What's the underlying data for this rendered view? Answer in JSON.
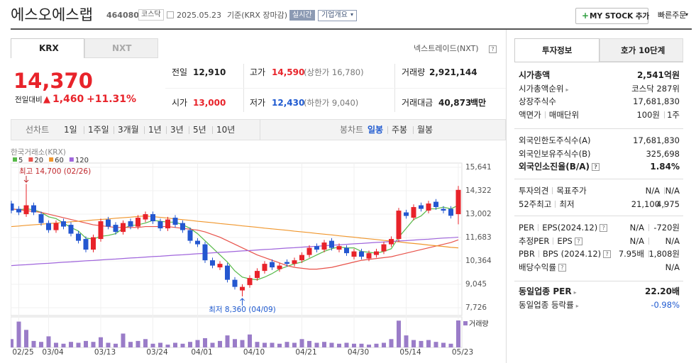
{
  "header": {
    "title": "에스오에스랩",
    "code": "464080",
    "market": "코스닥",
    "date": "2025.05.23",
    "basis": "기준(KRX 장마감)",
    "realtime": "실시간",
    "company_info": "기업개요",
    "mystock": "MY STOCK 추가",
    "quick_order": "빠른주문"
  },
  "market_tabs": [
    "KRX",
    "NXT"
  ],
  "nxt_link": "넥스트레이드(NXT)",
  "price": {
    "current": "14,370",
    "change_label": "전일대비",
    "change": "1,460",
    "change_rate": "+11.31%"
  },
  "summary": {
    "rows": [
      [
        {
          "label": "전일",
          "value": "12,910"
        },
        {
          "label": "고가",
          "value": "14,590",
          "sub": "(상한가 16,780)"
        },
        {
          "label": "거래량",
          "value": "2,921,144"
        }
      ],
      [
        {
          "label": "시가",
          "value": "13,000"
        },
        {
          "label": "저가",
          "value": "12,430",
          "sub": "(하한가 9,040)"
        },
        {
          "label": "거래대금",
          "value": "40,873",
          "unit": "백만"
        }
      ]
    ]
  },
  "toolbar": {
    "left": [
      "선차트",
      "1일",
      "1주일",
      "3개월",
      "1년",
      "3년",
      "5년",
      "10년"
    ],
    "right": [
      "봉차트",
      "일봉",
      "주봉",
      "월봉"
    ]
  },
  "chart_data": {
    "type": "candlestick",
    "source": "한국거래소(KRX)",
    "categories": [
      null,
      "02/25",
      null,
      null,
      null,
      "03/04",
      null,
      null,
      null,
      null,
      null,
      null,
      "03/13",
      null,
      null,
      null,
      null,
      null,
      null,
      "03/24",
      null,
      null,
      null,
      null,
      null,
      "04/01",
      null,
      null,
      null,
      null,
      null,
      null,
      "04/10",
      null,
      null,
      null,
      null,
      null,
      null,
      "04/21",
      null,
      null,
      null,
      null,
      null,
      null,
      "04/30",
      null,
      null,
      null,
      null,
      null,
      null,
      "05/14",
      null,
      null,
      null,
      null,
      null,
      null,
      "05/23"
    ],
    "open": [
      13600,
      13300,
      13000,
      13500,
      13000,
      12500,
      12100,
      12600,
      12400,
      11900,
      11600,
      11000,
      11600,
      12700,
      12400,
      12000,
      12600,
      12300,
      12700,
      13000,
      12600,
      12200,
      12800,
      12500,
      12100,
      11500,
      11300,
      10400,
      10000,
      10100,
      9300,
      8700,
      9000,
      9400,
      9800,
      10300,
      9900,
      10300,
      10200,
      10400,
      10700,
      11200,
      11000,
      11500,
      11000,
      11100,
      10600,
      10900,
      10500,
      10700,
      10900,
      11300,
      11600,
      13100,
      12800,
      13500,
      13200,
      13700,
      13300,
      13300,
      13000
    ],
    "high": [
      13750,
      13450,
      14700,
      13650,
      13150,
      12650,
      12650,
      12750,
      12550,
      12050,
      11750,
      11850,
      12750,
      12850,
      12550,
      12650,
      12750,
      12950,
      13150,
      13150,
      12750,
      12850,
      12950,
      12650,
      12250,
      11650,
      11450,
      10550,
      10350,
      10250,
      9450,
      9050,
      9550,
      9950,
      10350,
      10450,
      10250,
      10450,
      10550,
      10850,
      11250,
      11350,
      11550,
      11650,
      11350,
      11250,
      11050,
      11050,
      10950,
      11050,
      11450,
      11750,
      13350,
      13250,
      13550,
      13650,
      13750,
      13850,
      13450,
      13450,
      14590
    ],
    "low": [
      13050,
      12950,
      12850,
      12950,
      12350,
      11950,
      11950,
      12150,
      11750,
      11350,
      10850,
      10850,
      11450,
      12150,
      11850,
      11850,
      12150,
      12150,
      12550,
      12450,
      12050,
      12050,
      12250,
      11950,
      11350,
      11150,
      10250,
      9950,
      9850,
      9150,
      8750,
      8360,
      8850,
      9250,
      9650,
      9850,
      9750,
      10050,
      10050,
      10250,
      10550,
      10850,
      10850,
      10950,
      10850,
      10650,
      10450,
      10450,
      10350,
      10550,
      10750,
      11150,
      11450,
      12750,
      12650,
      13150,
      13050,
      13250,
      13050,
      12760,
      12430
    ],
    "close": [
      13200,
      13100,
      13500,
      13100,
      12500,
      12100,
      12500,
      12300,
      11900,
      11500,
      11000,
      11700,
      12600,
      12300,
      12000,
      12500,
      12300,
      12800,
      13000,
      12600,
      12200,
      12700,
      12400,
      12100,
      11500,
      11300,
      10400,
      10100,
      10200,
      9300,
      8900,
      8900,
      9400,
      9800,
      10200,
      10000,
      10100,
      10200,
      10400,
      10700,
      11100,
      11000,
      11400,
      11100,
      11200,
      10800,
      10900,
      10600,
      10800,
      10900,
      11300,
      11600,
      13200,
      12900,
      13400,
      13300,
      13600,
      13400,
      13200,
      12910,
      14370
    ],
    "up_color": "#e8232a",
    "down_color": "#2457d0",
    "series": [
      {
        "name": "5",
        "color": "#56b948",
        "values": [
          13300,
          13250,
          13300,
          13250,
          13100,
          12850,
          12750,
          12500,
          12250,
          12050,
          11650,
          11600,
          11750,
          11800,
          11900,
          12200,
          12350,
          12400,
          12500,
          12650,
          12600,
          12550,
          12550,
          12400,
          12200,
          11900,
          11500,
          11100,
          10700,
          10300,
          9800,
          9450,
          9350,
          9300,
          9450,
          9650,
          9900,
          10050,
          10200,
          10300,
          10500,
          10700,
          10900,
          11050,
          11150,
          11100,
          11100,
          10900,
          10850,
          10800,
          10900,
          11050,
          11700,
          12200,
          12700,
          12900,
          13300,
          13300,
          13400,
          13300,
          13500
        ]
      },
      {
        "name": "20",
        "color": "#e8524a",
        "values": [
          13300,
          13250,
          13200,
          13150,
          13100,
          13000,
          12900,
          12800,
          12700,
          12600,
          12500,
          12400,
          12350,
          12300,
          12250,
          12250,
          12250,
          12250,
          12300,
          12300,
          12300,
          12300,
          12250,
          12200,
          12150,
          12100,
          12000,
          11850,
          11700,
          11500,
          11300,
          11100,
          10900,
          10700,
          10550,
          10400,
          10250,
          10100,
          10000,
          9950,
          9900,
          9900,
          9950,
          10000,
          10100,
          10200,
          10300,
          10400,
          10450,
          10500,
          10550,
          10600,
          10700,
          10800,
          10900,
          11000,
          11100,
          11200,
          11300,
          11400,
          11550
        ]
      },
      {
        "name": "60",
        "color": "#f0962c",
        "values": [
          12300,
          12330,
          12370,
          12400,
          12430,
          12470,
          12500,
          12530,
          12570,
          12600,
          12630,
          12670,
          12700,
          12730,
          12770,
          12800,
          12830,
          12870,
          12900,
          12860,
          12820,
          12780,
          12730,
          12690,
          12650,
          12600,
          12560,
          12520,
          12470,
          12430,
          12390,
          12340,
          12300,
          12260,
          12210,
          12170,
          12130,
          12090,
          12040,
          12000,
          11960,
          11910,
          11870,
          11830,
          11780,
          11740,
          11700,
          11650,
          11610,
          11570,
          11520,
          11480,
          11440,
          11390,
          11350,
          11310,
          11260,
          11220,
          11180,
          11130,
          11100
        ]
      },
      {
        "name": "120",
        "color": "#a066dc",
        "values": [
          10100,
          10130,
          10150,
          10180,
          10210,
          10230,
          10260,
          10290,
          10310,
          10340,
          10370,
          10390,
          10420,
          10450,
          10470,
          10500,
          10530,
          10550,
          10580,
          10610,
          10630,
          10660,
          10690,
          10710,
          10740,
          10770,
          10790,
          10820,
          10850,
          10870,
          10900,
          10930,
          10950,
          10980,
          11010,
          11030,
          11060,
          11090,
          11110,
          11140,
          11170,
          11190,
          11220,
          11250,
          11270,
          11300,
          11330,
          11350,
          11380,
          11410,
          11430,
          11460,
          11490,
          11510,
          11540,
          11570,
          11590,
          11620,
          11650,
          11670,
          11700
        ]
      }
    ],
    "volume": {
      "name": "거래량",
      "color": "#9a7cc8",
      "values": [
        900000,
        2800000,
        1900000,
        700000,
        600000,
        1200000,
        500000,
        400000,
        600000,
        500000,
        700000,
        600000,
        1100000,
        500000,
        400000,
        1500000,
        600000,
        700000,
        900000,
        400000,
        500000,
        300000,
        500000,
        400000,
        600000,
        800000,
        1000000,
        500000,
        700000,
        1300000,
        900000,
        800000,
        1400000,
        600000,
        500000,
        500000,
        400000,
        600000,
        500000,
        900000,
        700000,
        500000,
        600000,
        500000,
        400000,
        500000,
        400000,
        400000,
        300000,
        400000,
        500000,
        900000,
        2900000,
        1300000,
        800000,
        700000,
        800000,
        600000,
        500000,
        400000,
        2921144
      ]
    },
    "ylim": [
      7726,
      15641
    ],
    "yticks": [
      {
        "value": 15641,
        "label": "15,641"
      },
      {
        "value": 14322,
        "label": "14,322"
      },
      {
        "value": 13002,
        "label": "13,002"
      },
      {
        "value": 11683,
        "label": "11,683"
      },
      {
        "value": 10364,
        "label": "10,364"
      },
      {
        "value": 9045,
        "label": "9,045"
      },
      {
        "value": 7726,
        "label": "7,726"
      }
    ],
    "annotations": [
      "최고 14,700 (02/26)",
      "최저 8,360 (04/09)"
    ]
  },
  "invest": {
    "tabs": [
      "투자정보",
      "호가 10단계"
    ],
    "sections": [
      [
        {
          "label": [
            "시가총액"
          ],
          "values": [
            "2,541억원"
          ]
        },
        {
          "label": [
            "시가총액순위"
          ],
          "values": [
            "코스닥 287위"
          ]
        },
        {
          "label": [
            "상장주식수"
          ],
          "values": [
            "17,681,830"
          ]
        },
        {
          "label": [
            "액면가",
            "매매단위"
          ],
          "values": [
            "100원",
            "1주"
          ]
        }
      ],
      [
        {
          "label": [
            "외국인한도주식수(A)"
          ],
          "values": [
            "17,681,830"
          ]
        },
        {
          "label": [
            "외국인보유주식수(B)"
          ],
          "values": [
            "325,698"
          ]
        },
        {
          "label": [
            "외국인소진율(B/A)"
          ],
          "values": [
            "1.84%"
          ]
        }
      ],
      [
        {
          "label": [
            "투자의견",
            "목표주가"
          ],
          "values": [
            "N/A",
            "N/A"
          ]
        },
        {
          "label": [
            "52주최고",
            "최저"
          ],
          "values": [
            "21,100",
            "4,975"
          ]
        }
      ],
      [
        {
          "label": [
            "PER",
            "EPS(2024.12)"
          ],
          "values": [
            "N/A",
            "-720원"
          ]
        },
        {
          "label": [
            "추정PER",
            "EPS"
          ],
          "values": [
            "N/A",
            "N/A"
          ]
        },
        {
          "label": [
            "PBR",
            "BPS (2024.12)"
          ],
          "values": [
            "7.95배",
            "1,808원"
          ]
        },
        {
          "label": [
            "배당수익률"
          ],
          "values": [
            "N/A"
          ]
        }
      ],
      [
        {
          "label": [
            "동일업종 PER"
          ],
          "values": [
            "22.20배"
          ]
        },
        {
          "label": [
            "동일업종 등락률"
          ],
          "values": [
            "-0.98%"
          ]
        }
      ]
    ]
  }
}
